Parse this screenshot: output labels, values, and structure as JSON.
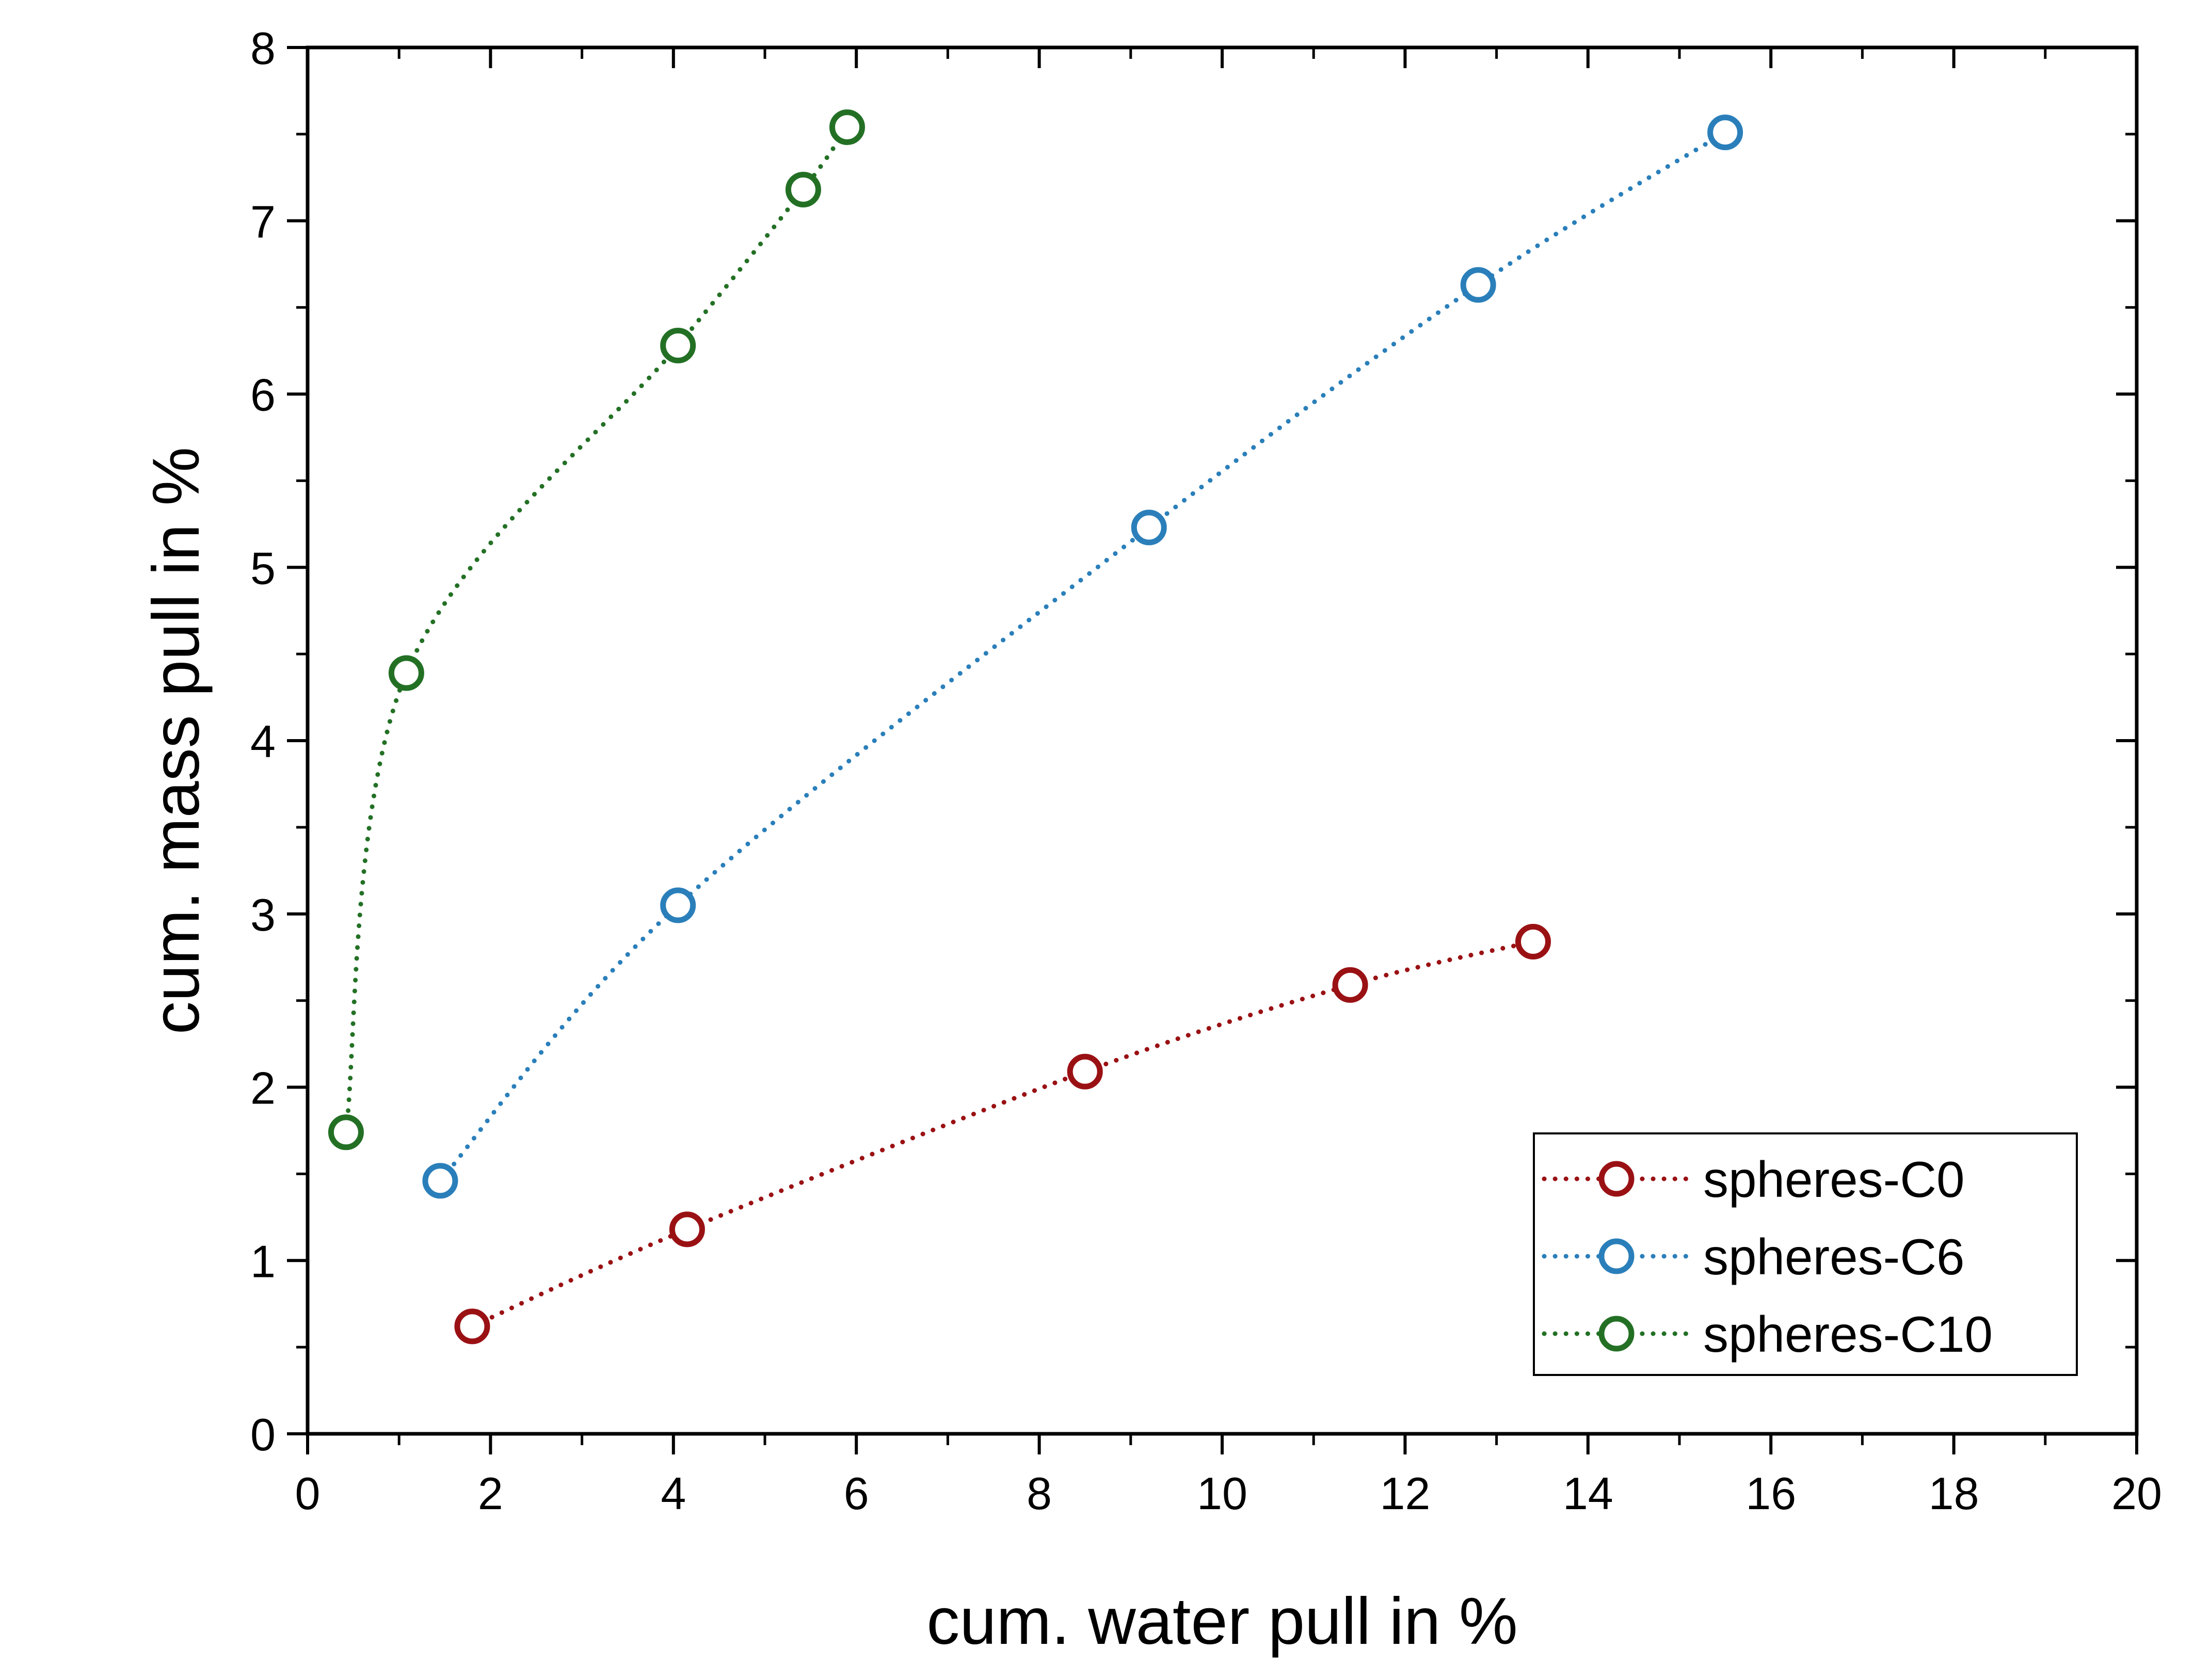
{
  "chart_data": {
    "type": "scatter",
    "xlabel": "cum. water pull in %",
    "ylabel": "cum. mass pull in %",
    "xlim": [
      0,
      20
    ],
    "ylim": [
      0,
      8
    ],
    "x_ticks": [
      0,
      2,
      4,
      6,
      8,
      10,
      12,
      14,
      16,
      18,
      20
    ],
    "y_ticks": [
      0,
      1,
      2,
      3,
      4,
      5,
      6,
      7,
      8
    ],
    "grid": false,
    "legend_position": "bottom-right",
    "series": [
      {
        "name": "spheres-C0",
        "color": "#9a1114",
        "points": [
          [
            1.8,
            0.62
          ],
          [
            4.15,
            1.18
          ],
          [
            8.5,
            2.09
          ],
          [
            11.4,
            2.59
          ],
          [
            13.4,
            2.84
          ]
        ]
      },
      {
        "name": "spheres-C6",
        "color": "#2a7fba",
        "points": [
          [
            1.45,
            1.46
          ],
          [
            4.05,
            3.05
          ],
          [
            9.2,
            5.23
          ],
          [
            12.8,
            6.63
          ],
          [
            15.5,
            7.51
          ]
        ]
      },
      {
        "name": "spheres-C10",
        "color": "#237025",
        "points": [
          [
            0.42,
            1.74
          ],
          [
            1.08,
            4.39
          ],
          [
            4.05,
            6.28
          ],
          [
            5.42,
            7.18
          ],
          [
            5.9,
            7.54
          ]
        ]
      }
    ]
  }
}
